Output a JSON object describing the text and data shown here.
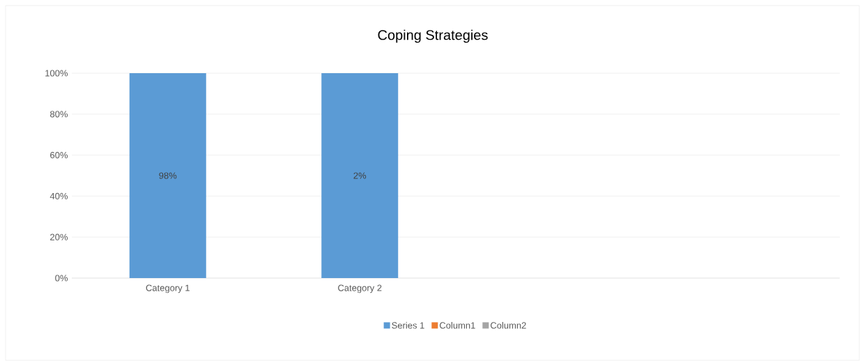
{
  "chart_data": {
    "type": "bar",
    "title": "Coping Strategies",
    "categories": [
      "Category 1",
      "Category 2",
      null,
      null
    ],
    "series": [
      {
        "name": "Series 1",
        "color": "#5b9bd5",
        "values": [
          100,
          100,
          null,
          null
        ]
      },
      {
        "name": "Column1",
        "color": "#ed7d31",
        "values": [
          null,
          null,
          null,
          null
        ]
      },
      {
        "name": "Column2",
        "color": "#a5a5a5",
        "values": [
          null,
          null,
          null,
          null
        ]
      }
    ],
    "ylim": [
      0,
      100
    ],
    "yticks": [
      {
        "value": 0,
        "label": "0%"
      },
      {
        "value": 20,
        "label": "20%"
      },
      {
        "value": 40,
        "label": "40%"
      },
      {
        "value": 60,
        "label": "60%"
      },
      {
        "value": 80,
        "label": "80%"
      },
      {
        "value": 100,
        "label": "100%"
      }
    ],
    "annotations": [
      "98%",
      "2%"
    ],
    "grid": "y",
    "legend": "bottom"
  }
}
